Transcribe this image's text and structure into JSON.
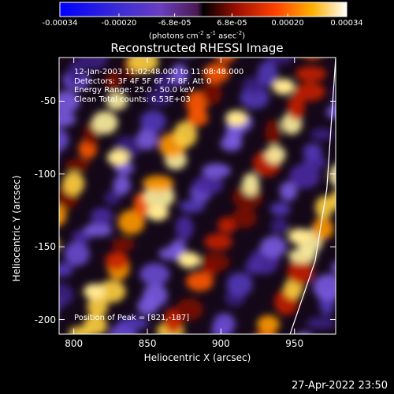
{
  "chart_data": {
    "type": "heatmap",
    "title": "Reconstructed RHESSI Image",
    "xlabel": "Heliocentric X (arcsec)",
    "ylabel": "Heliocentric Y (arcsec)",
    "xlim": [
      790,
      978
    ],
    "ylim": [
      -210,
      -20
    ],
    "x_ticks": [
      "800",
      "850",
      "900",
      "950"
    ],
    "y_ticks": [
      "-50",
      "-100",
      "-150",
      "-200"
    ],
    "colorbar": {
      "units_parts": [
        "(photons cm",
        "-2",
        " s",
        "-1",
        " asec",
        "-2",
        ")"
      ],
      "ticks": [
        "-0.00034",
        "-0.00020",
        "-6.8e-05",
        "6.8e-05",
        "0.00020",
        "0.00034"
      ],
      "range": [
        -0.00034,
        0.00034
      ]
    },
    "annotations": [
      "12-Jan-2003 11:02:48.000 to 11:08:48.000",
      "Detectors: 3F 4F 5F 6F 7F 8F, Att 0",
      "Energy Range: 25.0 - 50.0 keV",
      "Clean     Total counts: 6.53E+03"
    ],
    "peak_text": "Position of Peak = [821,-187]",
    "limb_points": [
      [
        978,
        -20
      ],
      [
        972,
        -110
      ],
      [
        964,
        -160
      ],
      [
        947,
        -210
      ]
    ]
  },
  "timestamp": "27-Apr-2022 23:50"
}
